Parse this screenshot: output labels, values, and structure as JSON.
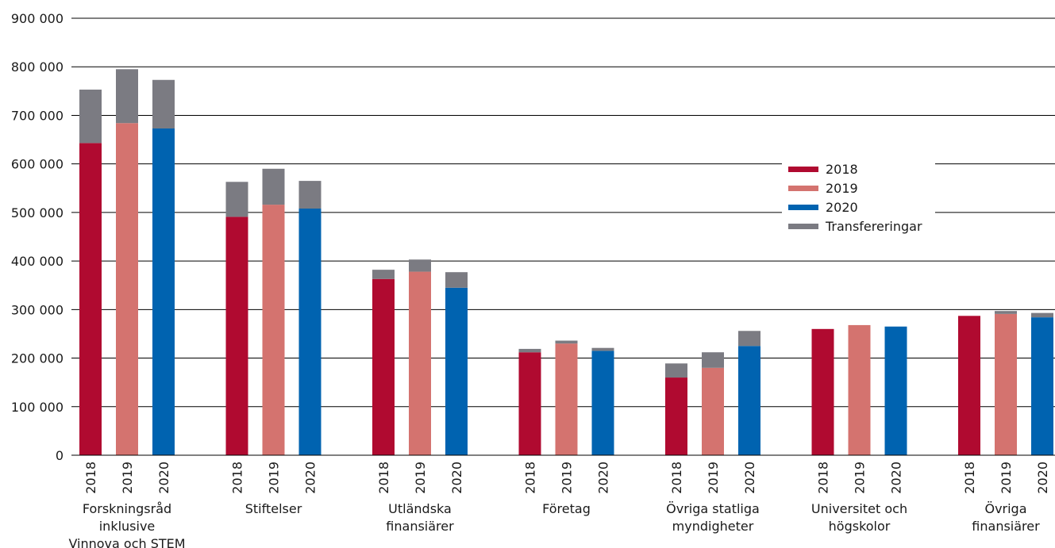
{
  "chart_data": {
    "type": "bar",
    "stacked": true,
    "ylim": [
      0,
      900000
    ],
    "yticks": [
      0,
      100000,
      200000,
      300000,
      400000,
      500000,
      600000,
      700000,
      800000,
      900000
    ],
    "ytick_labels": [
      "0",
      "100 000",
      "200 000",
      "300 000",
      "400 000",
      "500 000",
      "600 000",
      "700 000",
      "800 000",
      "900 000"
    ],
    "grid": true,
    "legend_position": "right",
    "years": [
      "2018",
      "2019",
      "2020"
    ],
    "colors": {
      "2018": "#b00a30",
      "2019": "#d4736f",
      "2020": "#0063b0",
      "Transfereringar": "#7b7b82"
    },
    "legend": [
      {
        "key": "2018",
        "label": "2018"
      },
      {
        "key": "2019",
        "label": "2019"
      },
      {
        "key": "2020",
        "label": "2020"
      },
      {
        "key": "Transfereringar",
        "label": "Transfereringar"
      }
    ],
    "groups": [
      {
        "label": [
          "Forskningsråd",
          "inklusive",
          "Vinnova och STEM"
        ],
        "base": [
          643000,
          684000,
          673000
        ],
        "transfer": [
          110000,
          111000,
          100000
        ]
      },
      {
        "label": [
          "Stiftelser"
        ],
        "base": [
          491000,
          516000,
          508000
        ],
        "transfer": [
          72000,
          74000,
          57000
        ]
      },
      {
        "label": [
          "Utländska",
          "finansiärer"
        ],
        "base": [
          363000,
          378000,
          345000
        ],
        "transfer": [
          19000,
          25000,
          32000
        ]
      },
      {
        "label": [
          "Företag"
        ],
        "base": [
          212000,
          230000,
          215000
        ],
        "transfer": [
          7000,
          6000,
          6000
        ]
      },
      {
        "label": [
          "Övriga statliga",
          "myndigheter"
        ],
        "base": [
          160000,
          180000,
          225000
        ],
        "transfer": [
          29000,
          32000,
          31000
        ]
      },
      {
        "label": [
          "Universitet och",
          "högskolor"
        ],
        "base": [
          260000,
          268000,
          265000
        ],
        "transfer": [
          0,
          0,
          0
        ]
      },
      {
        "label": [
          "Övriga",
          "finansiärer"
        ],
        "base": [
          287000,
          291000,
          284000
        ],
        "transfer": [
          0,
          6000,
          9000
        ]
      }
    ]
  }
}
